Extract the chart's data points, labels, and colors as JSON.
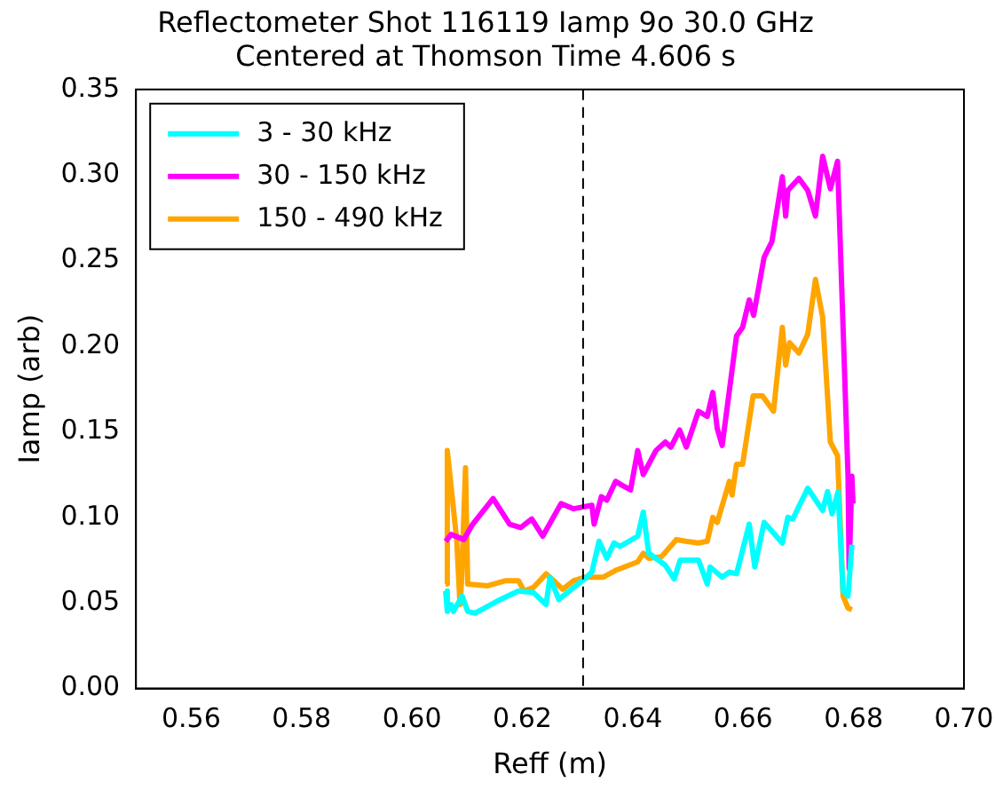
{
  "chart_data": {
    "type": "line",
    "title": "Reflectometer Shot 116119 Iamp 9o 30.0 GHz",
    "subtitle": "Centered at Thomson Time 4.606 s",
    "xlabel": "Reff (m)",
    "ylabel": "Iamp (arb)",
    "xlim": [
      0.55,
      0.7
    ],
    "xticks": [
      0.56,
      0.58,
      {
        "value": 0.6,
        "label": "0.60"
      },
      0.62,
      0.64,
      0.66,
      0.68,
      {
        "value": 0.7,
        "label": "0.70"
      }
    ],
    "ylim": [
      0,
      0.35
    ],
    "yticks": [
      {
        "value": 0,
        "label": "0.00"
      },
      {
        "value": 0.05,
        "label": "0.05"
      },
      {
        "value": 0.1,
        "label": "0.10"
      },
      {
        "value": 0.15,
        "label": "0.15"
      },
      {
        "value": 0.2,
        "label": "0.20"
      },
      {
        "value": 0.25,
        "label": "0.25"
      },
      {
        "value": 0.3,
        "label": "0.30"
      },
      {
        "value": 0.35,
        "label": "0.35"
      }
    ],
    "grid": false,
    "legend": "top left",
    "marker": "none",
    "line_style": "solid",
    "ref_lines": [
      {
        "axis": "x",
        "value": 0.631,
        "color": "#000000",
        "line_style": "dashed"
      }
    ],
    "series": [
      {
        "name": "3 - 30 kHz",
        "color": "#00ffff",
        "x": [
          0.6061,
          0.6064,
          0.6071,
          0.6075,
          0.6091,
          0.6101,
          0.6114,
          0.6154,
          0.6193,
          0.622,
          0.6243,
          0.625,
          0.6266,
          0.6293,
          0.6313,
          0.6326,
          0.6339,
          0.6353,
          0.6366,
          0.6377,
          0.6409,
          0.6419,
          0.6429,
          0.6459,
          0.6475,
          0.6486,
          0.6519,
          0.6535,
          0.654,
          0.6562,
          0.6575,
          0.6588,
          0.6611,
          0.6621,
          0.6638,
          0.6671,
          0.6681,
          0.669,
          0.6717,
          0.6744,
          0.6753,
          0.6761,
          0.6772,
          0.6781,
          0.679,
          0.6797
        ],
        "values": [
          0.057,
          0.045,
          0.049,
          0.045,
          0.054,
          0.045,
          0.044,
          0.051,
          0.057,
          0.056,
          0.049,
          0.065,
          0.052,
          0.059,
          0.064,
          0.068,
          0.086,
          0.076,
          0.085,
          0.083,
          0.089,
          0.103,
          0.079,
          0.072,
          0.064,
          0.075,
          0.075,
          0.061,
          0.071,
          0.065,
          0.068,
          0.067,
          0.096,
          0.071,
          0.097,
          0.085,
          0.1,
          0.099,
          0.117,
          0.104,
          0.115,
          0.102,
          0.115,
          0.057,
          0.054,
          0.084
        ]
      },
      {
        "name": "30 - 150 kHz",
        "color": "#ff00ff",
        "x": [
          0.6061,
          0.6071,
          0.6094,
          0.611,
          0.6147,
          0.6177,
          0.6197,
          0.6217,
          0.6237,
          0.627,
          0.6293,
          0.6326,
          0.633,
          0.6343,
          0.6353,
          0.6369,
          0.6379,
          0.6396,
          0.6409,
          0.6419,
          0.6442,
          0.6459,
          0.6469,
          0.6485,
          0.6497,
          0.6519,
          0.6535,
          0.6545,
          0.6553,
          0.6562,
          0.6588,
          0.6599,
          0.6611,
          0.6619,
          0.6638,
          0.6652,
          0.6671,
          0.6677,
          0.6681,
          0.6701,
          0.6717,
          0.6731,
          0.6744,
          0.6758,
          0.6771,
          0.679,
          0.6792,
          0.6797,
          0.6799
        ],
        "values": [
          0.086,
          0.09,
          0.087,
          0.096,
          0.111,
          0.096,
          0.094,
          0.099,
          0.089,
          0.108,
          0.105,
          0.107,
          0.096,
          0.112,
          0.11,
          0.121,
          0.119,
          0.116,
          0.139,
          0.125,
          0.139,
          0.144,
          0.141,
          0.151,
          0.141,
          0.162,
          0.159,
          0.173,
          0.152,
          0.142,
          0.206,
          0.211,
          0.227,
          0.218,
          0.252,
          0.261,
          0.299,
          0.276,
          0.291,
          0.298,
          0.291,
          0.276,
          0.311,
          0.292,
          0.308,
          0.124,
          0.07,
          0.124,
          0.108
        ]
      },
      {
        "name": "150 - 490 kHz",
        "color": "#ffa500",
        "x": [
          0.6061,
          0.6064,
          0.6081,
          0.6087,
          0.609,
          0.6097,
          0.6101,
          0.6137,
          0.617,
          0.6193,
          0.6203,
          0.622,
          0.6243,
          0.626,
          0.6273,
          0.6293,
          0.6313,
          0.6346,
          0.6369,
          0.6409,
          0.6419,
          0.6429,
          0.6452,
          0.6479,
          0.6496,
          0.6519,
          0.6535,
          0.6545,
          0.6553,
          0.6575,
          0.658,
          0.6588,
          0.6599,
          0.6618,
          0.6635,
          0.6655,
          0.6671,
          0.6677,
          0.6684,
          0.6701,
          0.6717,
          0.6731,
          0.6744,
          0.6758,
          0.6771,
          0.6781,
          0.679,
          0.6797
        ],
        "values": [
          0.061,
          0.139,
          0.087,
          0.049,
          0.064,
          0.129,
          0.061,
          0.06,
          0.063,
          0.063,
          0.057,
          0.059,
          0.067,
          0.062,
          0.058,
          0.063,
          0.065,
          0.065,
          0.069,
          0.074,
          0.079,
          0.076,
          0.077,
          0.087,
          0.086,
          0.085,
          0.086,
          0.1,
          0.097,
          0.121,
          0.113,
          0.131,
          0.131,
          0.171,
          0.171,
          0.162,
          0.211,
          0.189,
          0.202,
          0.196,
          0.207,
          0.239,
          0.217,
          0.144,
          0.136,
          0.054,
          0.047,
          0.046
        ]
      }
    ]
  }
}
